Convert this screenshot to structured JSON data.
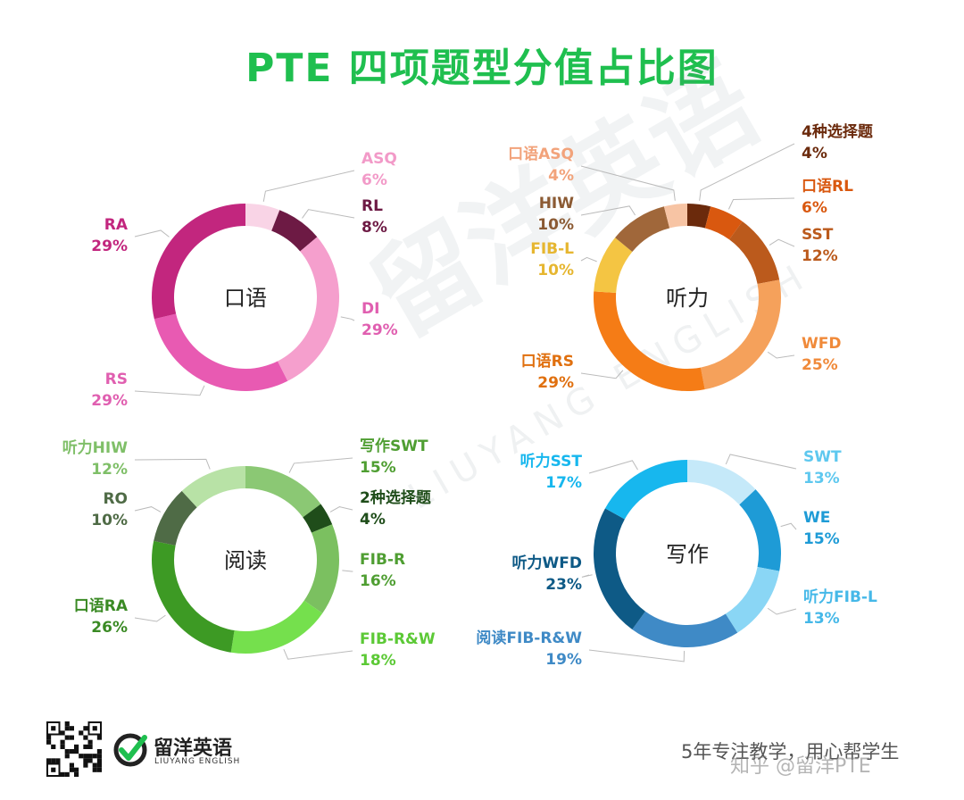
{
  "title": "PTE  四项题型分值占比图",
  "watermark": {
    "cn": "留洋英语",
    "en": "LIUYANG ENGLISH"
  },
  "footer": {
    "brand_name": "留洋英语",
    "brand_sub": "LIUYANG ENGLISH",
    "slogan": "5年专注教学，用心帮学生",
    "credit": "知乎 @留洋PTE"
  },
  "chart_data": [
    {
      "type": "pie",
      "title": "口语",
      "slices": [
        {
          "label": "ASQ",
          "value": 6,
          "pct": "6%",
          "color": "#f9d4e6",
          "text_color": "#f29ac8"
        },
        {
          "label": "RL",
          "value": 8,
          "pct": "8%",
          "color": "#6d1a44",
          "text_color": "#6d1a44"
        },
        {
          "label": "DI",
          "value": 29,
          "pct": "29%",
          "color": "#f59fcd",
          "text_color": "#e05fb0"
        },
        {
          "label": "RS",
          "value": 29,
          "pct": "29%",
          "color": "#e85ab2",
          "text_color": "#e05fb0"
        },
        {
          "label": "RA",
          "value": 29,
          "pct": "29%",
          "color": "#c2267e",
          "text_color": "#c2267e"
        }
      ]
    },
    {
      "type": "pie",
      "title": "听力",
      "slices": [
        {
          "label": "4种选择题",
          "value": 4,
          "pct": "4%",
          "color": "#6b2a0c",
          "text_color": "#6b2a0c"
        },
        {
          "label": "口语RL",
          "value": 6,
          "pct": "6%",
          "color": "#d9580f",
          "text_color": "#d9580f"
        },
        {
          "label": "SST",
          "value": 12,
          "pct": "12%",
          "color": "#bb5a1c",
          "text_color": "#bb5a1c"
        },
        {
          "label": "WFD",
          "value": 25,
          "pct": "25%",
          "color": "#f5a15b",
          "text_color": "#f08a3a"
        },
        {
          "label": "口语RS",
          "value": 29,
          "pct": "29%",
          "color": "#f57c16",
          "text_color": "#e0700f"
        },
        {
          "label": "FIB-L",
          "value": 10,
          "pct": "10%",
          "color": "#f4c543",
          "text_color": "#e6b630"
        },
        {
          "label": "HIW",
          "value": 10,
          "pct": "10%",
          "color": "#a0673a",
          "text_color": "#8b5a33"
        },
        {
          "label": "口语ASQ",
          "value": 4,
          "pct": "4%",
          "color": "#f7c4a4",
          "text_color": "#f2a37b"
        }
      ]
    },
    {
      "type": "pie",
      "title": "阅读",
      "slices": [
        {
          "label": "写作SWT",
          "value": 15,
          "pct": "15%",
          "color": "#8bc874",
          "text_color": "#4f9e32"
        },
        {
          "label": "2种选择题",
          "value": 4,
          "pct": "4%",
          "color": "#1f4d1a",
          "text_color": "#1f4d1a"
        },
        {
          "label": "FIB-R",
          "value": 16,
          "pct": "16%",
          "color": "#7bc060",
          "text_color": "#4f9e32"
        },
        {
          "label": "FIB-R&W",
          "value": 18,
          "pct": "18%",
          "color": "#75e04d",
          "text_color": "#5cc936"
        },
        {
          "label": "口语RA",
          "value": 26,
          "pct": "26%",
          "color": "#3d9a24",
          "text_color": "#3a8a24"
        },
        {
          "label": "RO",
          "value": 10,
          "pct": "10%",
          "color": "#4f6b46",
          "text_color": "#4f6b46"
        },
        {
          "label": "听力HIW",
          "value": 12,
          "pct": "12%",
          "color": "#b8e2a6",
          "text_color": "#7fbf68"
        }
      ]
    },
    {
      "type": "pie",
      "title": "写作",
      "slices": [
        {
          "label": "SWT",
          "value": 13,
          "pct": "13%",
          "color": "#c5e9f9",
          "text_color": "#5ec8ef"
        },
        {
          "label": "WE",
          "value": 15,
          "pct": "15%",
          "color": "#1e9bd6",
          "text_color": "#1e9bd6"
        },
        {
          "label": "听力FIB-L",
          "value": 13,
          "pct": "13%",
          "color": "#8ad6f5",
          "text_color": "#45b8e8"
        },
        {
          "label": "阅读FIB-R&W",
          "value": 19,
          "pct": "19%",
          "color": "#3f8ac6",
          "text_color": "#3f8ac6"
        },
        {
          "label": "听力WFD",
          "value": 23,
          "pct": "23%",
          "color": "#0e5a86",
          "text_color": "#0e5a86"
        },
        {
          "label": "听力SST",
          "value": 17,
          "pct": "17%",
          "color": "#17b7ee",
          "text_color": "#17b7ee"
        }
      ]
    }
  ]
}
